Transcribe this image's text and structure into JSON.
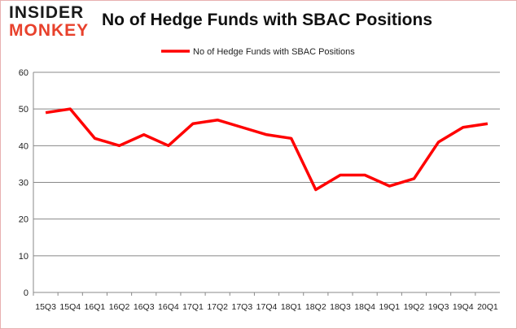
{
  "logo": {
    "line1": "INSIDER",
    "line2": "MONKEY"
  },
  "chart_data": {
    "type": "line",
    "title": "No of Hedge Funds with SBAC Positions",
    "categories": [
      "15Q3",
      "15Q4",
      "16Q1",
      "16Q2",
      "16Q3",
      "16Q4",
      "17Q1",
      "17Q2",
      "17Q3",
      "17Q4",
      "18Q1",
      "18Q2",
      "18Q3",
      "18Q4",
      "19Q1",
      "19Q2",
      "19Q3",
      "19Q4",
      "20Q1"
    ],
    "series": [
      {
        "name": "No of Hedge Funds with SBAC Positions",
        "color": "#ff0000",
        "values": [
          49,
          50,
          42,
          40,
          43,
          40,
          46,
          47,
          45,
          43,
          42,
          28,
          32,
          32,
          29,
          31,
          41,
          45,
          46
        ]
      }
    ],
    "ylim": [
      0,
      60
    ],
    "yticks": [
      0,
      10,
      20,
      30,
      40,
      50,
      60
    ],
    "grid": true,
    "legend": "top"
  }
}
